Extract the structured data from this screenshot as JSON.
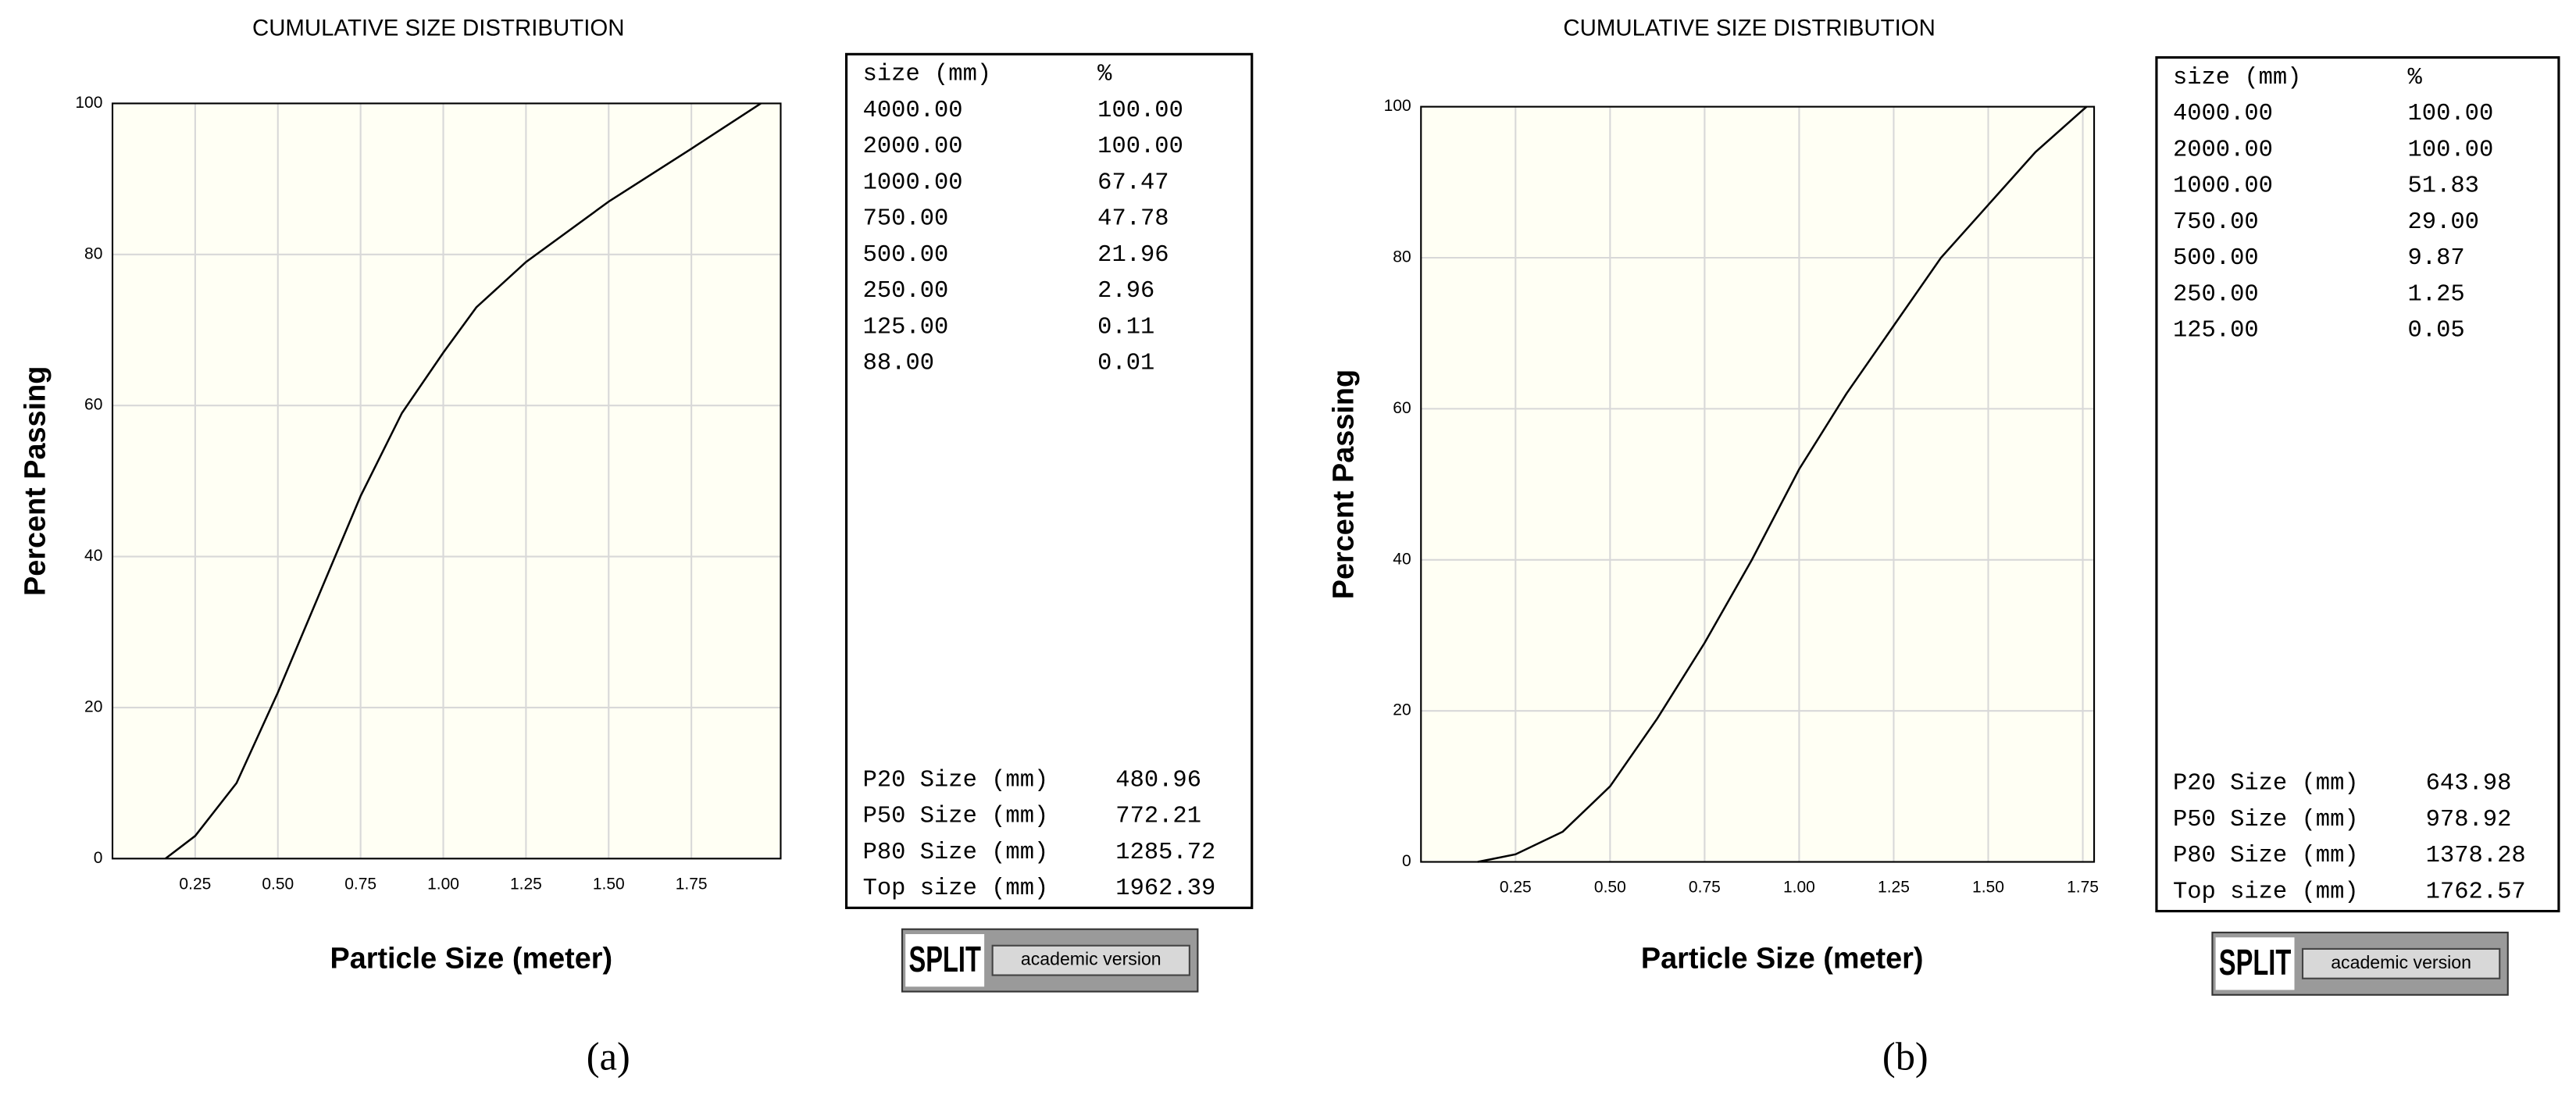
{
  "chart_data": [
    {
      "type": "line",
      "label": "(a)",
      "title": "CUMULATIVE SIZE DISTRIBUTION",
      "x_label": "Particle Size (meter)",
      "y_label": "Percent Passing",
      "x": [
        0.16,
        0.25,
        0.375,
        0.5,
        0.625,
        0.75,
        0.875,
        1.0,
        1.1,
        1.25,
        1.5,
        1.75,
        1.96
      ],
      "values": [
        0,
        3,
        10,
        22,
        35,
        48,
        59,
        67,
        73,
        79,
        87,
        94,
        100
      ],
      "color": "#000000",
      "xlim": [
        0,
        2.02
      ],
      "ylim": [
        0,
        100
      ],
      "xticks": [
        0.25,
        {
          "value": 0.5,
          "label": "0.50"
        },
        0.75,
        {
          "value": 1,
          "label": "1.00"
        },
        1.25,
        {
          "value": 1.5,
          "label": "1.50"
        },
        1.75
      ],
      "yticks": [
        0,
        20,
        40,
        60,
        80,
        100
      ],
      "grid": true,
      "table": {
        "header": [
          "size (mm)",
          "%"
        ],
        "rows": [
          [
            "4000.00",
            "100.00"
          ],
          [
            "2000.00",
            "100.00"
          ],
          [
            "1000.00",
            "67.47"
          ],
          [
            "750.00",
            "47.78"
          ],
          [
            "500.00",
            "21.96"
          ],
          [
            "250.00",
            "2.96"
          ],
          [
            "125.00",
            "0.11"
          ],
          [
            "88.00",
            "0.01"
          ]
        ],
        "summary": [
          [
            "P20 Size (mm)",
            "480.96"
          ],
          [
            "P50 Size (mm)",
            "772.21"
          ],
          [
            "P80 Size (mm)",
            "1285.72"
          ],
          [
            "Top size (mm)",
            "1962.39"
          ]
        ]
      },
      "logo": {
        "name": "SPLIT",
        "tag": "academic version"
      }
    },
    {
      "type": "line",
      "label": "(b)",
      "title": "CUMULATIVE SIZE DISTRIBUTION",
      "x_label": "Particle Size (meter)",
      "y_label": "Percent Passing",
      "x": [
        0.15,
        0.25,
        0.375,
        0.5,
        0.625,
        0.75,
        0.875,
        1.0,
        1.125,
        1.25,
        1.375,
        1.5,
        1.625,
        1.76
      ],
      "values": [
        0,
        1,
        4,
        10,
        19,
        29,
        40,
        52,
        62,
        71,
        80,
        87,
        94,
        100
      ],
      "color": "#000000",
      "xlim": [
        0,
        1.78
      ],
      "ylim": [
        0,
        100
      ],
      "xticks": [
        0.25,
        {
          "value": 0.5,
          "label": "0.50"
        },
        0.75,
        {
          "value": 1,
          "label": "1.00"
        },
        1.25,
        {
          "value": 1.5,
          "label": "1.50"
        },
        1.75
      ],
      "yticks": [
        0,
        20,
        40,
        60,
        80,
        100
      ],
      "grid": true,
      "table": {
        "header": [
          "size (mm)",
          "%"
        ],
        "rows": [
          [
            "4000.00",
            "100.00"
          ],
          [
            "2000.00",
            "100.00"
          ],
          [
            "1000.00",
            "51.83"
          ],
          [
            "750.00",
            "29.00"
          ],
          [
            "500.00",
            "9.87"
          ],
          [
            "250.00",
            "1.25"
          ],
          [
            "125.00",
            "0.05"
          ]
        ],
        "summary": [
          [
            "P20 Size (mm)",
            "643.98"
          ],
          [
            "P50 Size (mm)",
            "978.92"
          ],
          [
            "P80 Size (mm)",
            "1378.28"
          ],
          [
            "Top size (mm)",
            "1762.57"
          ]
        ]
      },
      "logo": {
        "name": "SPLIT",
        "tag": "academic version"
      }
    }
  ]
}
